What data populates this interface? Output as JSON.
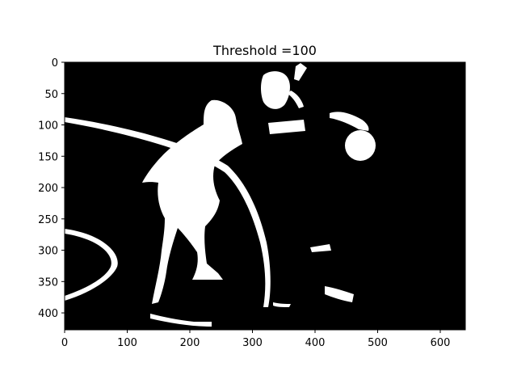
{
  "chart_data": {
    "type": "image",
    "title": "Threshold =100",
    "colormap": "gray",
    "image_width": 640,
    "image_height": 427,
    "xlim": [
      0,
      640
    ],
    "ylim": [
      427,
      0
    ],
    "x_ticks": [
      0,
      100,
      200,
      300,
      400,
      500,
      600
    ],
    "y_ticks": [
      0,
      50,
      100,
      150,
      200,
      250,
      300,
      350,
      400
    ],
    "grid": false
  }
}
